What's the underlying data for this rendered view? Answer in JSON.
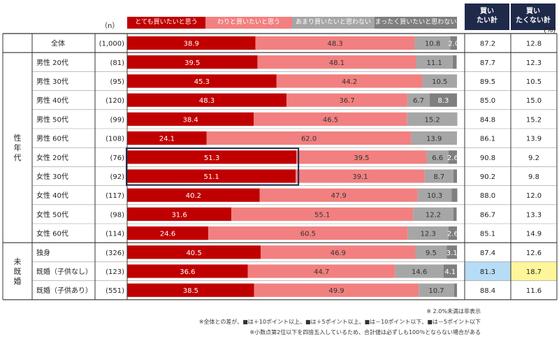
{
  "header": {
    "n_label": "（n）",
    "pct_label": "(%)",
    "right_col1": "買い\nたい計",
    "right_col2": "買い\nたくない計"
  },
  "chart_data": {
    "type": "bar",
    "stacked": true,
    "orientation": "horizontal",
    "legend": [
      "とても買いたいと思う",
      "わりと買いたいと思う",
      "あまり買いたいと思わない",
      "まったく買いたいと思わない"
    ],
    "colors": [
      "#c00000",
      "#f28080",
      "#a6a6a6",
      "#7f7f7f"
    ],
    "xlim": [
      0,
      100
    ],
    "group_labels": {
      "total": "",
      "gender_age": "性年代",
      "marital": "未既婚"
    },
    "rows": [
      {
        "label": "全体",
        "n": "(1,000)",
        "values": [
          38.9,
          48.3,
          10.8,
          2.0
        ],
        "buy": "87.2",
        "not_buy": "12.8"
      },
      {
        "label": "男性 20代",
        "n": "(81)",
        "values": [
          39.5,
          48.1,
          11.1,
          1.2
        ],
        "buy": "87.7",
        "not_buy": "12.3"
      },
      {
        "label": "男性 30代",
        "n": "(95)",
        "values": [
          45.3,
          44.2,
          10.5,
          0.0
        ],
        "buy": "89.5",
        "not_buy": "10.5"
      },
      {
        "label": "男性 40代",
        "n": "(120)",
        "values": [
          48.3,
          36.7,
          6.7,
          8.3
        ],
        "buy": "85.0",
        "not_buy": "15.0"
      },
      {
        "label": "男性 50代",
        "n": "(99)",
        "values": [
          38.4,
          46.5,
          15.2,
          0.0
        ],
        "buy": "84.8",
        "not_buy": "15.2"
      },
      {
        "label": "男性 60代",
        "n": "(108)",
        "values": [
          24.1,
          62.0,
          13.9,
          0.0
        ],
        "buy": "86.1",
        "not_buy": "13.9"
      },
      {
        "label": "女性 20代",
        "n": "(76)",
        "values": [
          51.3,
          39.5,
          6.6,
          2.6
        ],
        "buy": "90.8",
        "not_buy": "9.2"
      },
      {
        "label": "女性 30代",
        "n": "(92)",
        "values": [
          51.1,
          39.1,
          8.7,
          1.1
        ],
        "buy": "90.2",
        "not_buy": "9.8"
      },
      {
        "label": "女性 40代",
        "n": "(117)",
        "values": [
          40.2,
          47.9,
          10.3,
          1.7
        ],
        "buy": "88.0",
        "not_buy": "12.0"
      },
      {
        "label": "女性 50代",
        "n": "(98)",
        "values": [
          31.6,
          55.1,
          12.2,
          1.0
        ],
        "buy": "86.7",
        "not_buy": "13.3"
      },
      {
        "label": "女性 60代",
        "n": "(114)",
        "values": [
          24.6,
          60.5,
          12.3,
          2.6
        ],
        "buy": "85.1",
        "not_buy": "14.9"
      },
      {
        "label": "独身",
        "n": "(326)",
        "values": [
          40.5,
          46.9,
          9.5,
          3.1
        ],
        "buy": "87.4",
        "not_buy": "12.6"
      },
      {
        "label": "既婚（子供なし）",
        "n": "(123)",
        "values": [
          36.6,
          44.7,
          14.6,
          4.1
        ],
        "buy": "81.3",
        "not_buy": "18.7"
      },
      {
        "label": "既婚（子供あり）",
        "n": "(551)",
        "values": [
          38.5,
          49.9,
          10.7,
          0.9
        ],
        "buy": "88.4",
        "not_buy": "11.6"
      }
    ],
    "highlights": {
      "blue_cells": [
        [
          12,
          "buy"
        ]
      ],
      "yellow_cells": [
        [
          12,
          "not_buy"
        ]
      ],
      "boxed_rows": [
        "女性 20代",
        "女性 30代"
      ]
    },
    "hide_threshold": 2.0
  },
  "notes": {
    "note1": "※ 2.0%未満は非表示",
    "note2": "※全体との差が、■は＋10ポイント以上、■は＋5ポイント以上、■は－10ポイント以下、■は－5ポイント以下",
    "note3": "※小数点第2位以下を四捨五入しているため、合計値は必ずしも100％とならない場合がある"
  }
}
